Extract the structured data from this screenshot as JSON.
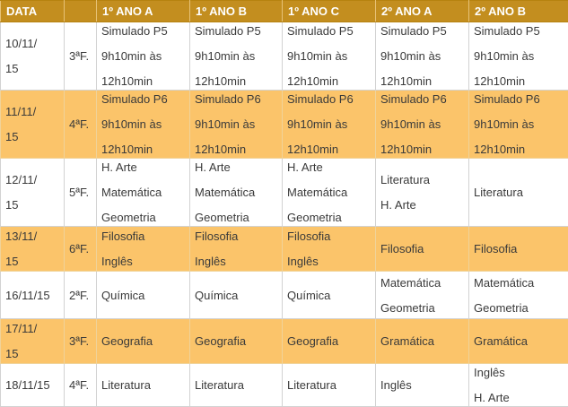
{
  "header": {
    "col_date": "DATA",
    "col_day": "",
    "classes": [
      "1º ANO A",
      "1º ANO B",
      "1º ANO C",
      "2º ANO A",
      "2º ANO B"
    ]
  },
  "rows": [
    {
      "date": [
        "10/11/",
        "15"
      ],
      "day": "3ªF.",
      "cells": [
        [
          "Simulado P5",
          "9h10min às",
          "12h10min"
        ],
        [
          "Simulado P5",
          "9h10min às",
          "12h10min"
        ],
        [
          "Simulado P5",
          "9h10min às",
          "12h10min"
        ],
        [
          "Simulado P5",
          "9h10min às",
          "12h10min"
        ],
        [
          "Simulado P5",
          "9h10min às",
          "12h10min"
        ]
      ]
    },
    {
      "date": [
        "11/11/",
        "15"
      ],
      "day": "4ªF.",
      "cells": [
        [
          "Simulado P6",
          "9h10min às",
          "12h10min"
        ],
        [
          "Simulado P6",
          "9h10min às",
          "12h10min"
        ],
        [
          "Simulado P6",
          "9h10min às",
          "12h10min"
        ],
        [
          "Simulado P6",
          "9h10min às",
          "12h10min"
        ],
        [
          "Simulado P6",
          "9h10min às",
          "12h10min"
        ]
      ]
    },
    {
      "date": [
        "12/11/",
        "15"
      ],
      "day": "5ªF.",
      "cells": [
        [
          "H. Arte",
          "Matemática",
          "Geometria"
        ],
        [
          "H. Arte",
          "Matemática",
          "Geometria"
        ],
        [
          "H. Arte",
          "Matemática",
          "Geometria"
        ],
        [
          "Literatura",
          "H. Arte"
        ],
        [
          "Literatura"
        ]
      ]
    },
    {
      "date": [
        "13/11/",
        "15"
      ],
      "day": "6ªF.",
      "cells": [
        [
          "Filosofia",
          "Inglês"
        ],
        [
          "Filosofia",
          "Inglês"
        ],
        [
          "Filosofia",
          "Inglês"
        ],
        [
          "Filosofia"
        ],
        [
          "Filosofia"
        ]
      ]
    },
    {
      "date": [
        "16/11/15"
      ],
      "day": "2ªF.",
      "cells": [
        [
          "Química"
        ],
        [
          "Química"
        ],
        [
          "Química"
        ],
        [
          "Matemática",
          "Geometria"
        ],
        [
          "Matemática",
          "Geometria"
        ]
      ]
    },
    {
      "date": [
        "17/11/",
        "15"
      ],
      "day": "3ªF.",
      "cells": [
        [
          "Geografia"
        ],
        [
          "Geografia"
        ],
        [
          "Geografia"
        ],
        [
          "Gramática"
        ],
        [
          "Gramática"
        ]
      ]
    },
    {
      "date": [
        "18/11/15"
      ],
      "day": "4ªF.",
      "cells": [
        [
          "Literatura"
        ],
        [
          "Literatura"
        ],
        [
          "Literatura"
        ],
        [
          "Inglês"
        ],
        [
          "Inglês",
          "H. Arte"
        ]
      ]
    }
  ],
  "colors": {
    "header_bg": "#c38e1f",
    "alt_row_bg": "#fbc46a",
    "text": "#3a3a3a"
  }
}
